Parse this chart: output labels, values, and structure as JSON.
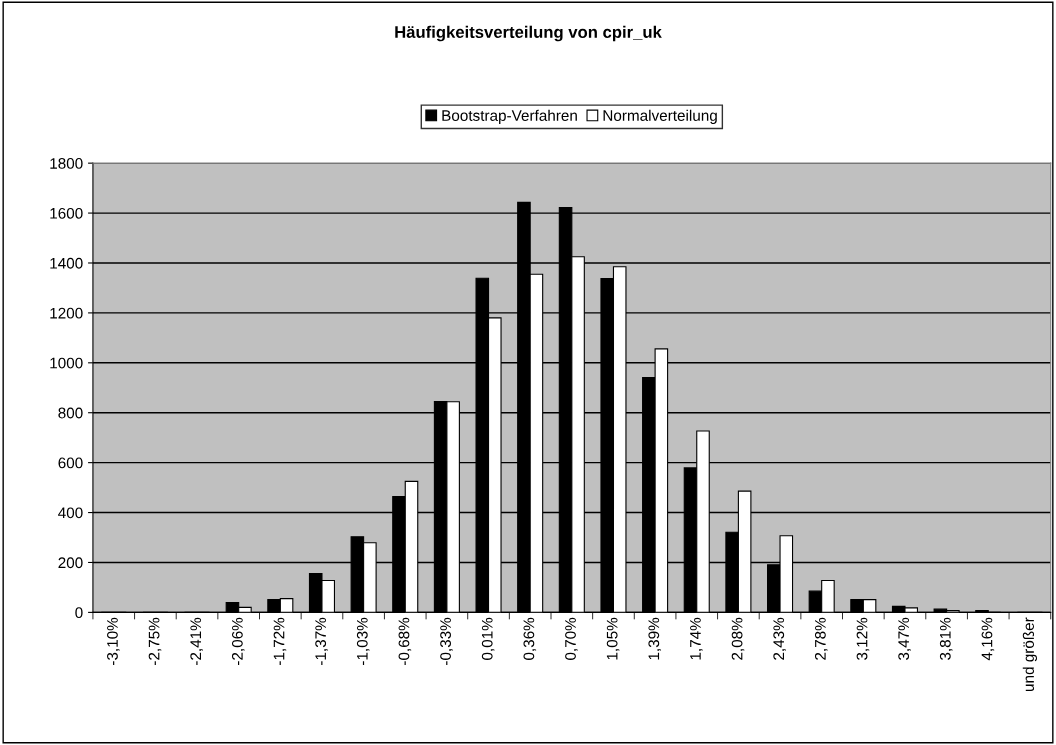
{
  "chart_data": {
    "type": "bar",
    "title": "Häufigkeitsverteilung von cpir_uk",
    "categories": [
      "-3,10%",
      "-2,75%",
      "-2,41%",
      "-2,06%",
      "-1,72%",
      "-1,37%",
      "-1,03%",
      "-0,68%",
      "-0,33%",
      "0,01%",
      "0,36%",
      "0,70%",
      "1,05%",
      "1,39%",
      "1,74%",
      "2,08%",
      "2,43%",
      "2,78%",
      "3,12%",
      "3,47%",
      "3,81%",
      "4,16%",
      "und größer"
    ],
    "series": [
      {
        "name": "Bootstrap-Verfahren",
        "color": "#000000",
        "values": [
          0,
          null,
          null,
          39,
          51,
          156,
          303,
          464,
          845,
          1339,
          1643,
          1622,
          1338,
          941,
          579,
          321,
          191,
          85,
          51,
          24,
          13,
          7,
          0
        ]
      },
      {
        "name": "Normalverteilung",
        "color": "#ffffff",
        "values": [
          0,
          null,
          null,
          20,
          55,
          128,
          279,
          525,
          844,
          1180,
          1355,
          1425,
          1385,
          1056,
          727,
          486,
          307,
          128,
          51,
          18,
          7,
          0,
          0
        ]
      }
    ],
    "ylim": [
      0,
      1800
    ],
    "yticks": [
      0,
      200,
      400,
      600,
      800,
      1000,
      1200,
      1400,
      1600,
      1800
    ],
    "grid": "y",
    "legend": "top"
  }
}
